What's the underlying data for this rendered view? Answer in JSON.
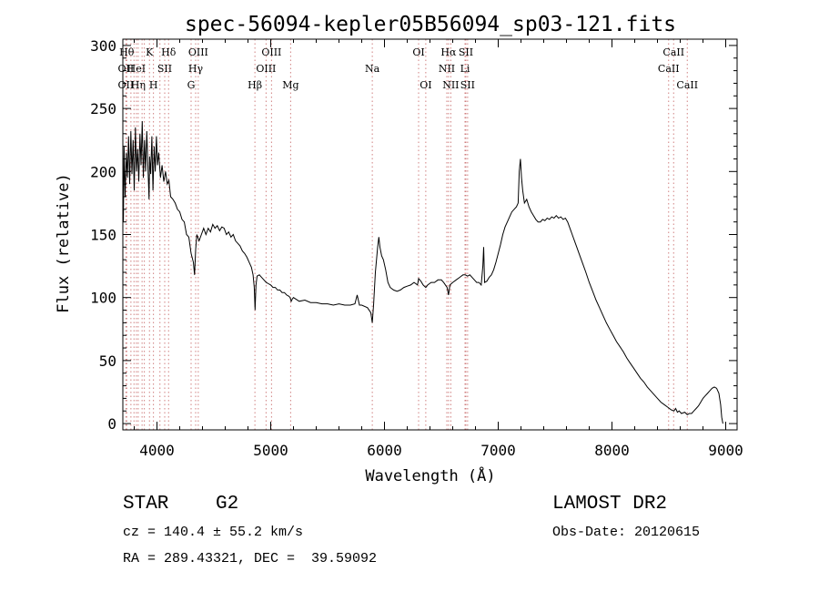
{
  "chart_data": {
    "type": "line",
    "title": "spec-56094-kepler05B56094_sp03-121.fits",
    "xlabel": "Wavelength (Å)",
    "ylabel": "Flux (relative)",
    "xlim": [
      3700,
      9100
    ],
    "ylim": [
      -5,
      305
    ],
    "xticks": [
      4000,
      5000,
      6000,
      7000,
      8000,
      9000
    ],
    "yticks": [
      0,
      50,
      100,
      150,
      200,
      250,
      300
    ],
    "grid": false,
    "series_color": "#000000",
    "line_color": "#d08080",
    "spectrum": [
      [
        3700,
        190
      ],
      [
        3705,
        160
      ],
      [
        3710,
        220
      ],
      [
        3720,
        180
      ],
      [
        3730,
        215
      ],
      [
        3740,
        195
      ],
      [
        3750,
        228
      ],
      [
        3760,
        190
      ],
      [
        3770,
        232
      ],
      [
        3780,
        198
      ],
      [
        3790,
        225
      ],
      [
        3800,
        185
      ],
      [
        3810,
        235
      ],
      [
        3820,
        200
      ],
      [
        3830,
        218
      ],
      [
        3840,
        192
      ],
      [
        3850,
        230
      ],
      [
        3860,
        205
      ],
      [
        3870,
        240
      ],
      [
        3880,
        195
      ],
      [
        3890,
        225
      ],
      [
        3900,
        200
      ],
      [
        3910,
        232
      ],
      [
        3920,
        205
      ],
      [
        3930,
        178
      ],
      [
        3935,
        212
      ],
      [
        3945,
        198
      ],
      [
        3955,
        228
      ],
      [
        3965,
        185
      ],
      [
        3975,
        220
      ],
      [
        3985,
        200
      ],
      [
        3995,
        228
      ],
      [
        4005,
        205
      ],
      [
        4015,
        215
      ],
      [
        4030,
        195
      ],
      [
        4045,
        205
      ],
      [
        4060,
        192
      ],
      [
        4075,
        200
      ],
      [
        4090,
        190
      ],
      [
        4105,
        193
      ],
      [
        4120,
        180
      ],
      [
        4140,
        178
      ],
      [
        4160,
        175
      ],
      [
        4180,
        170
      ],
      [
        4200,
        168
      ],
      [
        4220,
        162
      ],
      [
        4240,
        160
      ],
      [
        4260,
        150
      ],
      [
        4280,
        148
      ],
      [
        4300,
        135
      ],
      [
        4320,
        128
      ],
      [
        4330,
        118
      ],
      [
        4340,
        138
      ],
      [
        4350,
        150
      ],
      [
        4370,
        145
      ],
      [
        4390,
        150
      ],
      [
        4410,
        155
      ],
      [
        4430,
        150
      ],
      [
        4450,
        155
      ],
      [
        4470,
        152
      ],
      [
        4490,
        158
      ],
      [
        4510,
        155
      ],
      [
        4530,
        157
      ],
      [
        4550,
        153
      ],
      [
        4570,
        156
      ],
      [
        4590,
        155
      ],
      [
        4610,
        150
      ],
      [
        4630,
        152
      ],
      [
        4650,
        148
      ],
      [
        4670,
        150
      ],
      [
        4690,
        145
      ],
      [
        4710,
        143
      ],
      [
        4730,
        141
      ],
      [
        4750,
        137
      ],
      [
        4770,
        135
      ],
      [
        4790,
        132
      ],
      [
        4810,
        128
      ],
      [
        4830,
        124
      ],
      [
        4845,
        118
      ],
      [
        4855,
        108
      ],
      [
        4862,
        90
      ],
      [
        4870,
        110
      ],
      [
        4880,
        117
      ],
      [
        4900,
        118
      ],
      [
        4920,
        116
      ],
      [
        4940,
        114
      ],
      [
        4960,
        112
      ],
      [
        4980,
        111
      ],
      [
        5000,
        110
      ],
      [
        5020,
        108
      ],
      [
        5040,
        108
      ],
      [
        5060,
        106
      ],
      [
        5080,
        106
      ],
      [
        5100,
        104
      ],
      [
        5120,
        104
      ],
      [
        5140,
        102
      ],
      [
        5160,
        101
      ],
      [
        5170,
        100
      ],
      [
        5180,
        97
      ],
      [
        5190,
        99
      ],
      [
        5200,
        100
      ],
      [
        5250,
        97
      ],
      [
        5300,
        98
      ],
      [
        5350,
        96
      ],
      [
        5400,
        96
      ],
      [
        5450,
        95
      ],
      [
        5500,
        95
      ],
      [
        5550,
        94
      ],
      [
        5600,
        95
      ],
      [
        5650,
        94
      ],
      [
        5700,
        94
      ],
      [
        5740,
        95
      ],
      [
        5760,
        102
      ],
      [
        5780,
        94
      ],
      [
        5800,
        94
      ],
      [
        5850,
        92
      ],
      [
        5880,
        88
      ],
      [
        5893,
        80
      ],
      [
        5905,
        95
      ],
      [
        5920,
        120
      ],
      [
        5940,
        140
      ],
      [
        5950,
        148
      ],
      [
        5960,
        140
      ],
      [
        5975,
        133
      ],
      [
        5990,
        130
      ],
      [
        6010,
        122
      ],
      [
        6030,
        112
      ],
      [
        6050,
        108
      ],
      [
        6080,
        106
      ],
      [
        6110,
        105
      ],
      [
        6140,
        106
      ],
      [
        6170,
        108
      ],
      [
        6200,
        109
      ],
      [
        6230,
        110
      ],
      [
        6260,
        112
      ],
      [
        6290,
        110
      ],
      [
        6300,
        115
      ],
      [
        6320,
        113
      ],
      [
        6340,
        110
      ],
      [
        6363,
        108
      ],
      [
        6380,
        110
      ],
      [
        6410,
        112
      ],
      [
        6440,
        112
      ],
      [
        6470,
        114
      ],
      [
        6500,
        114
      ],
      [
        6520,
        112
      ],
      [
        6550,
        108
      ],
      [
        6563,
        102
      ],
      [
        6575,
        110
      ],
      [
        6600,
        112
      ],
      [
        6630,
        114
      ],
      [
        6660,
        116
      ],
      [
        6690,
        118
      ],
      [
        6710,
        118
      ],
      [
        6730,
        117
      ],
      [
        6750,
        118
      ],
      [
        6770,
        116
      ],
      [
        6790,
        114
      ],
      [
        6810,
        112
      ],
      [
        6830,
        112
      ],
      [
        6850,
        110
      ],
      [
        6865,
        125
      ],
      [
        6872,
        140
      ],
      [
        6880,
        112
      ],
      [
        6900,
        113
      ],
      [
        6920,
        116
      ],
      [
        6940,
        118
      ],
      [
        6960,
        122
      ],
      [
        6980,
        128
      ],
      [
        7000,
        135
      ],
      [
        7020,
        142
      ],
      [
        7040,
        150
      ],
      [
        7060,
        156
      ],
      [
        7080,
        160
      ],
      [
        7100,
        164
      ],
      [
        7120,
        168
      ],
      [
        7140,
        170
      ],
      [
        7160,
        172
      ],
      [
        7175,
        175
      ],
      [
        7185,
        200
      ],
      [
        7195,
        210
      ],
      [
        7205,
        195
      ],
      [
        7215,
        185
      ],
      [
        7230,
        175
      ],
      [
        7250,
        178
      ],
      [
        7270,
        172
      ],
      [
        7290,
        168
      ],
      [
        7310,
        165
      ],
      [
        7330,
        162
      ],
      [
        7350,
        160
      ],
      [
        7370,
        160
      ],
      [
        7390,
        162
      ],
      [
        7410,
        161
      ],
      [
        7430,
        163
      ],
      [
        7450,
        162
      ],
      [
        7470,
        164
      ],
      [
        7490,
        163
      ],
      [
        7510,
        165
      ],
      [
        7530,
        163
      ],
      [
        7550,
        164
      ],
      [
        7570,
        162
      ],
      [
        7590,
        163
      ],
      [
        7610,
        160
      ],
      [
        7630,
        155
      ],
      [
        7650,
        150
      ],
      [
        7670,
        145
      ],
      [
        7690,
        140
      ],
      [
        7710,
        135
      ],
      [
        7730,
        130
      ],
      [
        7750,
        125
      ],
      [
        7770,
        120
      ],
      [
        7800,
        112
      ],
      [
        7830,
        105
      ],
      [
        7860,
        98
      ],
      [
        7890,
        92
      ],
      [
        7920,
        86
      ],
      [
        7950,
        80
      ],
      [
        7980,
        75
      ],
      [
        8010,
        70
      ],
      [
        8040,
        65
      ],
      [
        8070,
        61
      ],
      [
        8100,
        57
      ],
      [
        8130,
        52
      ],
      [
        8160,
        48
      ],
      [
        8190,
        44
      ],
      [
        8220,
        40
      ],
      [
        8250,
        36
      ],
      [
        8280,
        33
      ],
      [
        8310,
        29
      ],
      [
        8340,
        26
      ],
      [
        8370,
        23
      ],
      [
        8400,
        20
      ],
      [
        8430,
        17
      ],
      [
        8460,
        15
      ],
      [
        8490,
        13
      ],
      [
        8520,
        11
      ],
      [
        8545,
        10
      ],
      [
        8560,
        12
      ],
      [
        8575,
        9
      ],
      [
        8590,
        10
      ],
      [
        8610,
        8
      ],
      [
        8640,
        9
      ],
      [
        8662,
        7
      ],
      [
        8680,
        8
      ],
      [
        8700,
        8
      ],
      [
        8720,
        10
      ],
      [
        8740,
        12
      ],
      [
        8760,
        14
      ],
      [
        8780,
        17
      ],
      [
        8800,
        20
      ],
      [
        8820,
        22
      ],
      [
        8840,
        24
      ],
      [
        8860,
        26
      ],
      [
        8880,
        28
      ],
      [
        8900,
        29
      ],
      [
        8920,
        28
      ],
      [
        8940,
        24
      ],
      [
        8955,
        15
      ],
      [
        8965,
        5
      ],
      [
        8975,
        0
      ]
    ],
    "lines": [
      {
        "wave": 3734,
        "label": "Hθ",
        "row": 1
      },
      {
        "wave": 3727,
        "label": "OII",
        "row": 2
      },
      {
        "wave": 3727,
        "label": "OII",
        "row": 3
      },
      {
        "wave": 3771,
        "label": "",
        "row": 0
      },
      {
        "wave": 3798,
        "label": "",
        "row": 0
      },
      {
        "wave": 3819,
        "label": "HeI",
        "row": 2
      },
      {
        "wave": 3835,
        "label": "Hη",
        "row": 3
      },
      {
        "wave": 3869,
        "label": "",
        "row": 0
      },
      {
        "wave": 3889,
        "label": "",
        "row": 0
      },
      {
        "wave": 3934,
        "label": "K",
        "row": 1
      },
      {
        "wave": 3969,
        "label": "H",
        "row": 3
      },
      {
        "wave": 4026,
        "label": "",
        "row": 0
      },
      {
        "wave": 4068,
        "label": "SII",
        "row": 2
      },
      {
        "wave": 4102,
        "label": "Hδ",
        "row": 1
      },
      {
        "wave": 4300,
        "label": "G",
        "row": 3
      },
      {
        "wave": 4340,
        "label": "Hγ",
        "row": 2
      },
      {
        "wave": 4363,
        "label": "OIII",
        "row": 1
      },
      {
        "wave": 4861,
        "label": "Hβ",
        "row": 3
      },
      {
        "wave": 4959,
        "label": "OIII",
        "row": 2
      },
      {
        "wave": 5007,
        "label": "OIII",
        "row": 1
      },
      {
        "wave": 5175,
        "label": "Mg",
        "row": 3
      },
      {
        "wave": 5893,
        "label": "Na",
        "row": 2
      },
      {
        "wave": 6300,
        "label": "OI",
        "row": 1
      },
      {
        "wave": 6363,
        "label": "OI",
        "row": 3
      },
      {
        "wave": 6548,
        "label": "NII",
        "row": 2
      },
      {
        "wave": 6563,
        "label": "Hα",
        "row": 1
      },
      {
        "wave": 6583,
        "label": "NII",
        "row": 3
      },
      {
        "wave": 6708,
        "label": "Li",
        "row": 2
      },
      {
        "wave": 6716,
        "label": "SII",
        "row": 1
      },
      {
        "wave": 6731,
        "label": "SII",
        "row": 3
      },
      {
        "wave": 8498,
        "label": "CaII",
        "row": 2
      },
      {
        "wave": 8542,
        "label": "CaII",
        "row": 1
      },
      {
        "wave": 8662,
        "label": "CaII",
        "row": 3
      }
    ]
  },
  "info": {
    "class": "STAR",
    "subclass": "G2",
    "survey": "LAMOST DR2",
    "cz": "cz = 140.4 ± 55.2 km/s",
    "obs_date": "Obs-Date: 20120615",
    "radec": "RA = 289.43321, DEC =  39.59092"
  }
}
